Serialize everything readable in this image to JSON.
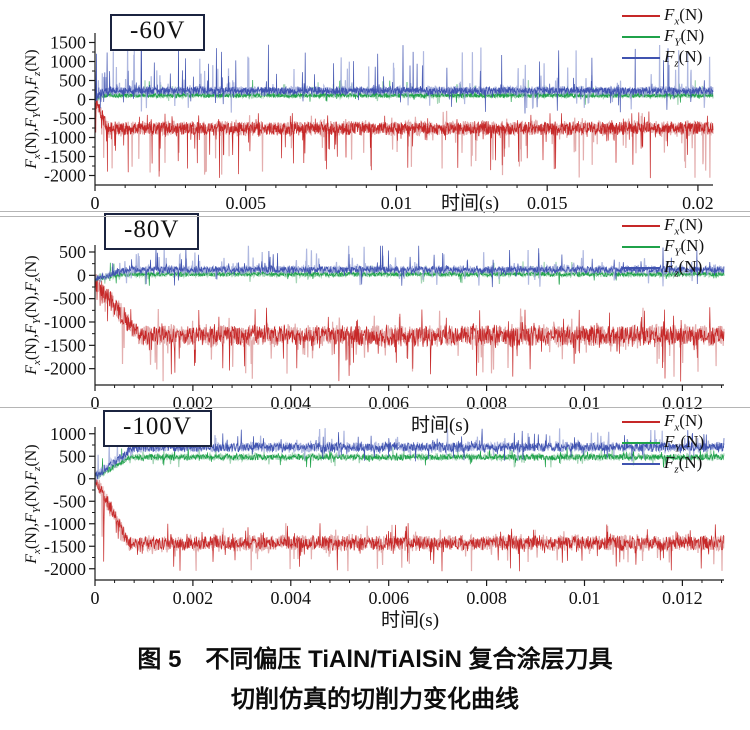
{
  "figure": {
    "caption_line1": "图 5　不同偏压 TiAlN/TiAlSiN 复合涂层刀具",
    "caption_line2": "切削仿真的切削力变化曲线"
  },
  "colors": {
    "fx": "#c62828",
    "fx_light": "#dd9a9a",
    "fy": "#1fa24a",
    "fy_light": "#8fcaa4",
    "fz": "#4053b0",
    "fz_light": "#9ba6d8",
    "axis": "#1a1a1a",
    "separator": "#b5b5b5",
    "title_box_border": "#1b2440",
    "caption": "#0d0d0d"
  },
  "chart_data": [
    {
      "type": "line",
      "title": "-60V",
      "xlabel": "时间(s)",
      "ylabel_parts": [
        {
          "sym": "F",
          "sub": "x",
          "rest": "(N),"
        },
        {
          "sym": "F",
          "sub": "Y",
          "rest": "(N),"
        },
        {
          "sym": "F",
          "sub": "z",
          "rest": "(N)"
        }
      ],
      "xlim": [
        0,
        0.0205
      ],
      "ylim": [
        -2250,
        1750
      ],
      "xticks": [
        0,
        0.005,
        0.01,
        0.015,
        0.02
      ],
      "yticks": [
        1500,
        1000,
        500,
        0,
        -500,
        -1000,
        -1500,
        -2000
      ],
      "grid": false,
      "legend_position": "top-right",
      "series": [
        {
          "sym": "F",
          "sub": "x",
          "rest": "(N)",
          "color_key": "fx",
          "light_key": "fx_light",
          "start": 0,
          "settle": 0.0004,
          "mean": -760,
          "band": 200,
          "spike_up_to": -300,
          "spike_down_to": -2080,
          "p_up": 0.02,
          "p_down": 0.055,
          "seed": 11
        },
        {
          "sym": "F",
          "sub": "Y",
          "rest": "(N)",
          "color_key": "fy",
          "light_key": "fy_light",
          "start": 20,
          "settle": 0.0003,
          "mean": 110,
          "band": 75,
          "spike_up_to": 520,
          "spike_down_to": -160,
          "p_up": 0.02,
          "p_down": 0.012,
          "seed": 22
        },
        {
          "sym": "F",
          "sub": "z",
          "rest": "(N)",
          "color_key": "fz",
          "light_key": "fz_light",
          "start": 30,
          "settle": 0.0003,
          "mean": 230,
          "band": 125,
          "spike_up_to": 1520,
          "spike_down_to": -380,
          "p_up": 0.05,
          "p_down": 0.02,
          "seed": 33
        }
      ]
    },
    {
      "type": "line",
      "title": "-80V",
      "xlabel": "时间(s)",
      "ylabel_parts": [
        {
          "sym": "F",
          "sub": "x",
          "rest": "(N),"
        },
        {
          "sym": "F",
          "sub": "Y",
          "rest": "(N),"
        },
        {
          "sym": "F",
          "sub": "z",
          "rest": "(N)"
        }
      ],
      "xlim": [
        0,
        0.01285
      ],
      "ylim": [
        -2350,
        650
      ],
      "xticks": [
        0,
        0.002,
        0.004,
        0.006,
        0.008,
        0.01,
        0.012
      ],
      "yticks": [
        500,
        0,
        -500,
        -1000,
        -1500,
        -2000
      ],
      "grid": false,
      "legend_position": "top-right",
      "series": [
        {
          "sym": "F",
          "sub": "x",
          "rest": "(N)",
          "color_key": "fx",
          "light_key": "fx_light",
          "start": -120,
          "settle": 0.0009,
          "mean": -1290,
          "band": 240,
          "spike_up_to": -680,
          "spike_down_to": -2280,
          "p_up": 0.03,
          "p_down": 0.05,
          "seed": 44
        },
        {
          "sym": "F",
          "sub": "Y",
          "rest": "(N)",
          "color_key": "fy",
          "light_key": "fy_light",
          "start": -80,
          "settle": 0.0006,
          "mean": 25,
          "band": 62,
          "spike_up_to": 300,
          "spike_down_to": -230,
          "p_up": 0.012,
          "p_down": 0.012,
          "seed": 55
        },
        {
          "sym": "F",
          "sub": "z",
          "rest": "(N)",
          "color_key": "fz",
          "light_key": "fz_light",
          "start": -90,
          "settle": 0.0006,
          "mean": 120,
          "band": 95,
          "spike_up_to": 700,
          "spike_down_to": -260,
          "p_up": 0.045,
          "p_down": 0.02,
          "seed": 66
        }
      ]
    },
    {
      "type": "line",
      "title": "-100V",
      "xlabel": "时间(s)",
      "ylabel_parts": [
        {
          "sym": "F",
          "sub": "x",
          "rest": "(N),"
        },
        {
          "sym": "F",
          "sub": "Y",
          "rest": "(N),"
        },
        {
          "sym": "F",
          "sub": "z",
          "rest": "(N)"
        }
      ],
      "xlim": [
        0,
        0.01285
      ],
      "ylim": [
        -2250,
        1150
      ],
      "xticks": [
        0,
        0.002,
        0.004,
        0.006,
        0.008,
        0.01,
        0.012
      ],
      "yticks": [
        1000,
        500,
        0,
        -500,
        -1000,
        -1500,
        -2000
      ],
      "grid": false,
      "legend_position": "top-right",
      "series": [
        {
          "sym": "F",
          "sub": "x",
          "rest": "(N)",
          "color_key": "fx",
          "light_key": "fx_light",
          "start": 0,
          "settle": 0.0007,
          "mean": -1430,
          "band": 185,
          "spike_up_to": -980,
          "spike_down_to": -2060,
          "p_up": 0.03,
          "p_down": 0.045,
          "seed": 77
        },
        {
          "sym": "F",
          "sub": "Y",
          "rest": "(N)",
          "color_key": "fy",
          "light_key": "fy_light",
          "start": 20,
          "settle": 0.0007,
          "mean": 480,
          "band": 82,
          "spike_up_to": 760,
          "spike_down_to": 240,
          "p_up": 0.02,
          "p_down": 0.02,
          "seed": 88
        },
        {
          "sym": "F",
          "sub": "z",
          "rest": "(N)",
          "color_key": "fz",
          "light_key": "fz_light",
          "start": 40,
          "settle": 0.0008,
          "mean": 700,
          "band": 118,
          "spike_up_to": 1130,
          "spike_down_to": 360,
          "p_up": 0.045,
          "p_down": 0.02,
          "seed": 99
        }
      ]
    }
  ]
}
